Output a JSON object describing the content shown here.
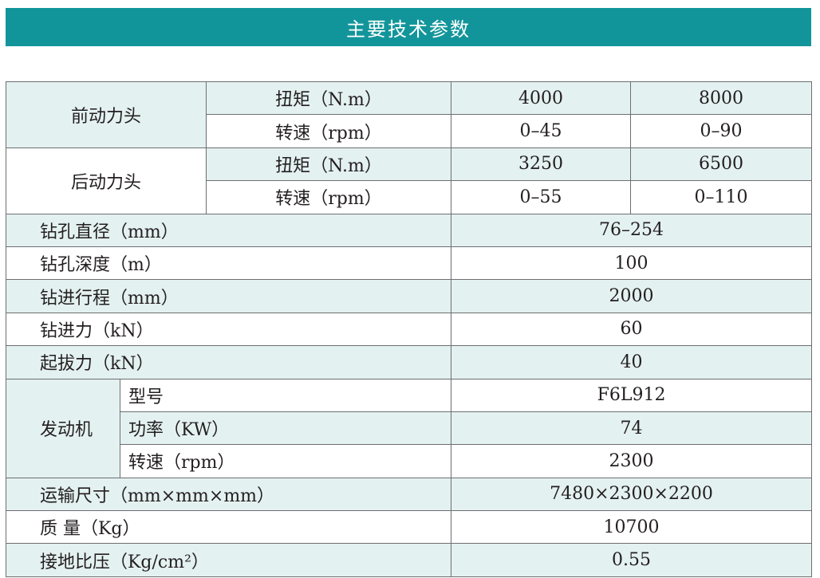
{
  "title": "主要技术参数",
  "power_heads": [
    {
      "name": "前动力头",
      "rows": [
        {
          "label": "扭矩（N.m）",
          "v1": "4000",
          "v2": "8000"
        },
        {
          "label": "转速（rpm）",
          "v1": "0–45",
          "v2": "0–90"
        }
      ]
    },
    {
      "name": "后动力头",
      "rows": [
        {
          "label": "扭矩（N.m）",
          "v1": "3250",
          "v2": "6500"
        },
        {
          "label": "转速（rpm）",
          "v1": "0–55",
          "v2": "0–110"
        }
      ]
    }
  ],
  "params1": [
    {
      "label": "钻孔直径（mm）",
      "value": "76–254"
    },
    {
      "label": "钻孔深度（m）",
      "value": "100"
    },
    {
      "label": "钻进行程（mm）",
      "value": "2000"
    },
    {
      "label": "钻进力（kN）",
      "value": "60"
    },
    {
      "label": "起拔力（kN）",
      "value": "40"
    }
  ],
  "engine": {
    "name": "发动机",
    "rows": [
      {
        "label": "型号",
        "value": "F6L912"
      },
      {
        "label": "功率（KW）",
        "value": "74"
      },
      {
        "label": "转速（rpm）",
        "value": "2300"
      }
    ]
  },
  "params2": [
    {
      "label": "运输尺寸（mm×mm×mm）",
      "value": "7480×2300×2200"
    },
    {
      "label": "质 量（Kg）",
      "value": "10700"
    },
    {
      "label": "接地比压（Kg/cm²）",
      "value": "0.55"
    }
  ],
  "colors": {
    "header": "#12959a",
    "row_tint": "#e4f1f1"
  }
}
